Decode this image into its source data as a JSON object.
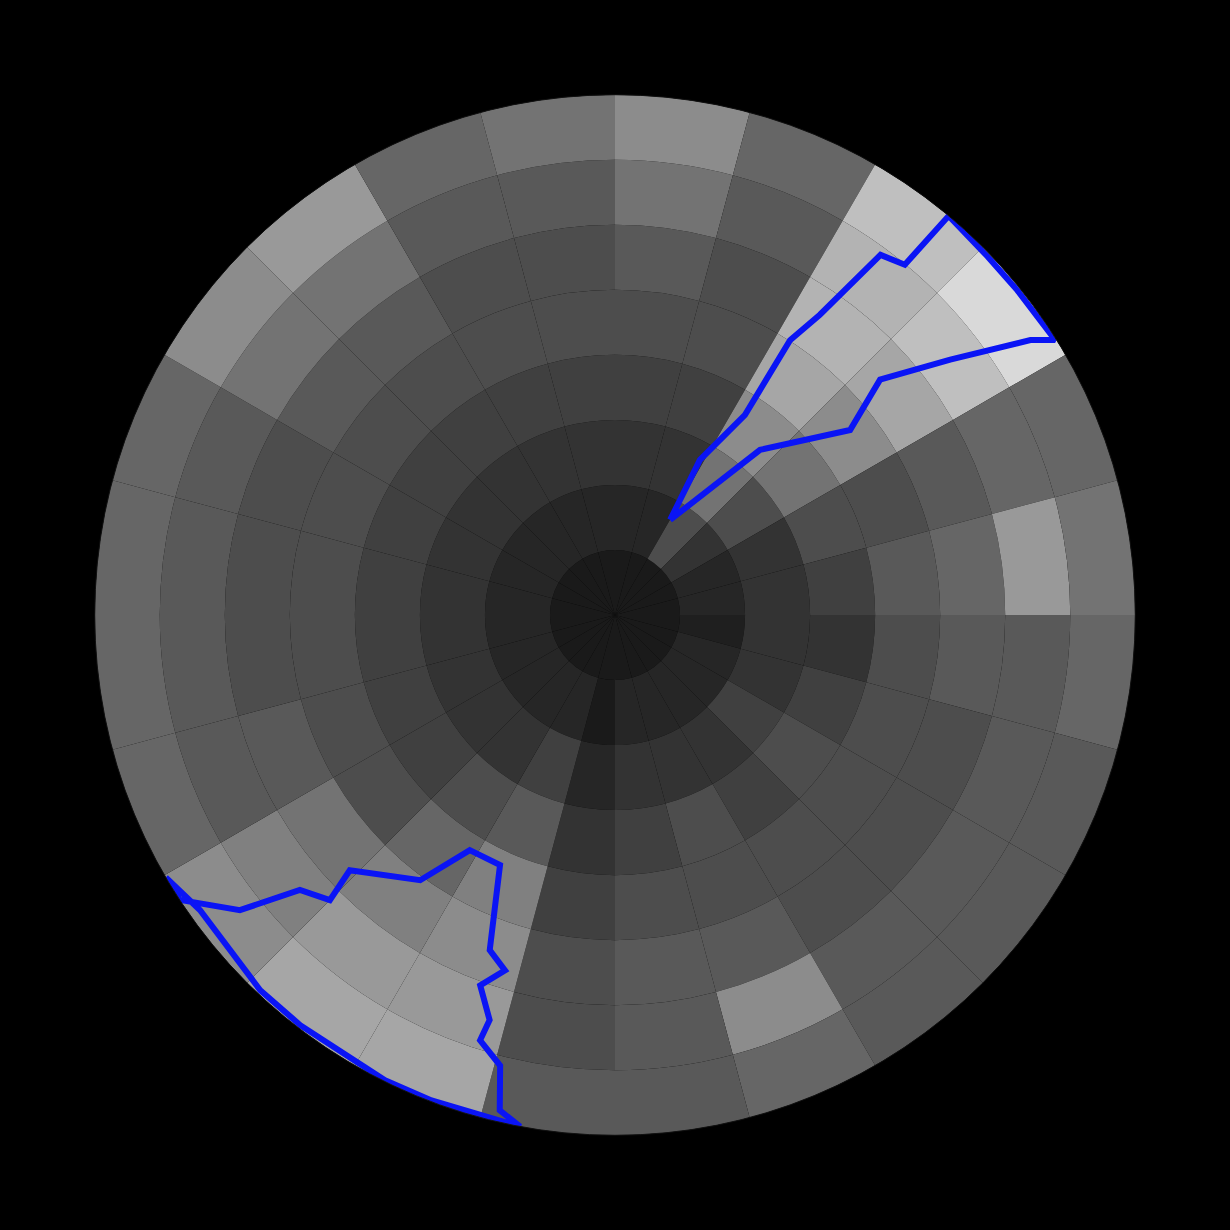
{
  "chart_data": {
    "type": "polar_heatmap",
    "theta": [
      7.5,
      22.5,
      37.5,
      52.5,
      67.5,
      82.5,
      97.5,
      112.5,
      127.5,
      142.5,
      157.5,
      172.5,
      187.5,
      202.5,
      217.5,
      232.5,
      247.5,
      262.5,
      277.5,
      292.5,
      307.5,
      322.5,
      337.5,
      352.5
    ],
    "r_edges": [
      0,
      1,
      2,
      3,
      4,
      5,
      6,
      7,
      8
    ],
    "rlim": [
      0,
      8
    ],
    "zlim": [
      0,
      1
    ],
    "cells": [
      [
        0.1,
        0.15,
        0.2,
        0.25,
        0.3,
        0.35,
        0.45,
        0.55
      ],
      [
        0.1,
        0.15,
        0.2,
        0.25,
        0.3,
        0.3,
        0.35,
        0.4
      ],
      [
        0.1,
        0.3,
        0.45,
        0.55,
        0.65,
        0.7,
        0.7,
        0.75
      ],
      [
        0.1,
        0.2,
        0.3,
        0.45,
        0.55,
        0.65,
        0.75,
        0.85
      ],
      [
        0.1,
        0.15,
        0.2,
        0.3,
        0.3,
        0.35,
        0.4,
        0.4
      ],
      [
        0.1,
        0.15,
        0.2,
        0.25,
        0.35,
        0.4,
        0.6,
        0.45
      ],
      [
        0.1,
        0.12,
        0.2,
        0.2,
        0.3,
        0.35,
        0.35,
        0.4
      ],
      [
        0.1,
        0.15,
        0.2,
        0.25,
        0.3,
        0.3,
        0.35,
        0.35
      ],
      [
        0.1,
        0.15,
        0.25,
        0.3,
        0.3,
        0.3,
        0.35,
        0.35
      ],
      [
        0.1,
        0.15,
        0.2,
        0.25,
        0.3,
        0.3,
        0.35,
        0.35
      ],
      [
        0.1,
        0.15,
        0.2,
        0.3,
        0.3,
        0.35,
        0.55,
        0.4
      ],
      [
        0.1,
        0.15,
        0.2,
        0.25,
        0.3,
        0.35,
        0.35,
        0.35
      ],
      [
        0.1,
        0.1,
        0.15,
        0.2,
        0.25,
        0.3,
        0.3,
        0.35
      ],
      [
        0.1,
        0.15,
        0.25,
        0.35,
        0.5,
        0.55,
        0.6,
        0.65
      ],
      [
        0.1,
        0.15,
        0.2,
        0.3,
        0.4,
        0.5,
        0.6,
        0.65
      ],
      [
        0.1,
        0.15,
        0.2,
        0.25,
        0.3,
        0.45,
        0.5,
        0.55
      ],
      [
        0.1,
        0.15,
        0.2,
        0.25,
        0.3,
        0.35,
        0.35,
        0.4
      ],
      [
        0.1,
        0.15,
        0.2,
        0.25,
        0.3,
        0.3,
        0.35,
        0.4
      ],
      [
        0.1,
        0.15,
        0.2,
        0.25,
        0.3,
        0.3,
        0.35,
        0.4
      ],
      [
        0.1,
        0.15,
        0.2,
        0.25,
        0.3,
        0.3,
        0.35,
        0.4
      ],
      [
        0.1,
        0.15,
        0.2,
        0.25,
        0.3,
        0.35,
        0.45,
        0.55
      ],
      [
        0.1,
        0.15,
        0.2,
        0.25,
        0.3,
        0.35,
        0.45,
        0.6
      ],
      [
        0.1,
        0.15,
        0.2,
        0.25,
        0.3,
        0.3,
        0.35,
        0.4
      ],
      [
        0.1,
        0.15,
        0.2,
        0.25,
        0.3,
        0.3,
        0.35,
        0.45
      ]
    ],
    "contours": [
      {
        "color": "#0a14f5",
        "r": [
          1.69,
          3.38,
          4.6,
          5.45,
          6.48,
          7.66,
          7.98,
          7.95,
          7.95,
          8.0,
          6.99,
          6.88,
          5.59,
          5.01,
          3.67,
          2.72,
          1.69
        ],
        "theta": [
          30.1,
          41.3,
          51.8,
          48.4,
          52.7,
          56.5,
          58.0,
          51.1,
          46.1,
          39.9,
          39.6,
          36.4,
          34.3,
          32.5,
          33.0,
          28.7,
          30.1
        ]
      },
      {
        "color": "#0a14f5",
        "r": [
          8.0,
          8.0,
          7.34,
          6.43,
          6.2,
          5.66,
          5.06,
          4.25,
          4.23,
          5.5,
          5.72,
          6.06,
          6.52,
          6.86,
          7.15,
          7.82,
          8.0,
          7.98,
          7.98,
          7.95,
          7.94,
          7.83,
          8.0
        ],
        "theta": [
          239.7,
          236.8,
          231.8,
          228.9,
          225.0,
          226.1,
          216.3,
          211.7,
          204.7,
          200.5,
          197.2,
          200.0,
          197.2,
          197.6,
          194.3,
          193.1,
          190.5,
          200.7,
          206.3,
          217.5,
          223.4,
          234.6,
          239.7
        ]
      }
    ],
    "grid": false,
    "tick_labels": false
  }
}
